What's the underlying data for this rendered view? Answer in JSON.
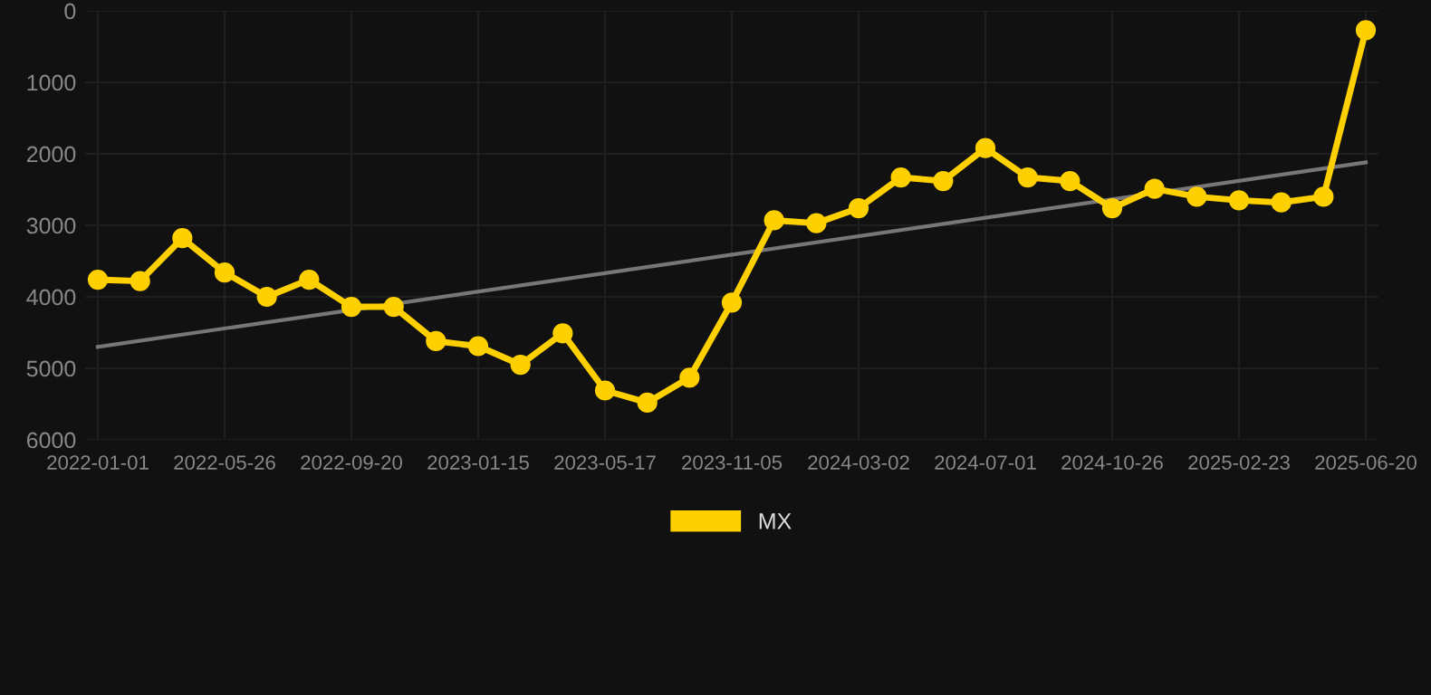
{
  "chart_data": {
    "type": "line",
    "categories": [
      "2022-01-01",
      null,
      null,
      "2022-05-26",
      null,
      null,
      "2022-09-20",
      null,
      null,
      "2023-01-15",
      null,
      null,
      "2023-05-17",
      null,
      null,
      "2023-11-05",
      null,
      null,
      "2024-03-02",
      null,
      null,
      "2024-07-01",
      null,
      null,
      "2024-10-26",
      null,
      null,
      "2025-02-23",
      null,
      null,
      "2025-06-20"
    ],
    "series": [
      {
        "name": "MX",
        "color": "#ffd000",
        "marker": "circle",
        "values": [
          3760,
          3780,
          3180,
          3660,
          4000,
          3760,
          4140,
          4140,
          4620,
          4690,
          4950,
          4510,
          5310,
          5480,
          5130,
          4080,
          2930,
          2970,
          2760,
          2330,
          2380,
          1920,
          2330,
          2380,
          2760,
          2490,
          2600,
          2650,
          2680,
          2600,
          270
        ]
      },
      {
        "type": "line",
        "color": "#777777",
        "marker": "none",
        "values": [
          4700,
          null,
          null,
          null,
          null,
          null,
          null,
          null,
          null,
          null,
          null,
          null,
          null,
          null,
          null,
          null,
          null,
          null,
          null,
          null,
          null,
          null,
          null,
          null,
          null,
          null,
          null,
          null,
          null,
          null,
          2120
        ]
      }
    ],
    "ylim": [
      6000,
      0
    ],
    "yticks": [
      0,
      1000,
      2000,
      3000,
      4000,
      5000,
      6000
    ],
    "grid": true,
    "legend": "bottom"
  }
}
